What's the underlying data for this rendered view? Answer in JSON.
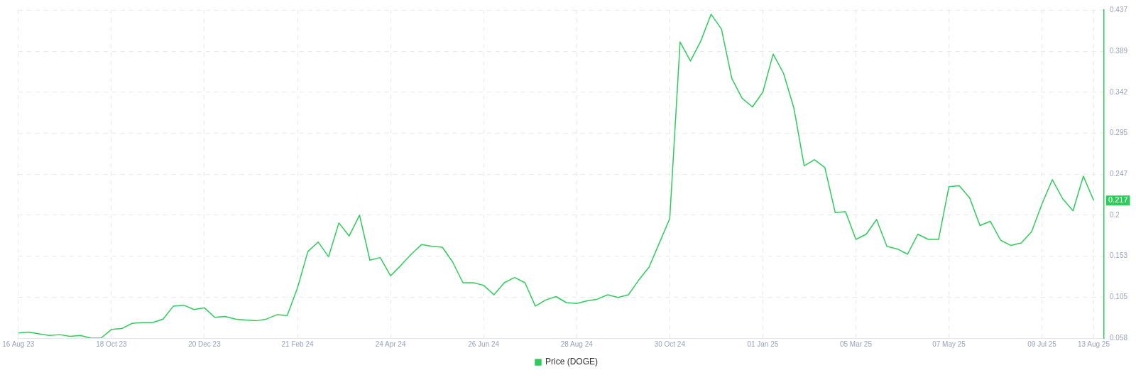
{
  "chart_data": {
    "type": "line",
    "x": [
      "2023-08-16",
      "2023-08-23",
      "2023-08-30",
      "2023-09-06",
      "2023-09-13",
      "2023-09-20",
      "2023-09-27",
      "2023-10-04",
      "2023-10-11",
      "2023-10-18",
      "2023-10-25",
      "2023-11-01",
      "2023-11-08",
      "2023-11-15",
      "2023-11-22",
      "2023-11-29",
      "2023-12-06",
      "2023-12-13",
      "2023-12-20",
      "2023-12-27",
      "2024-01-03",
      "2024-01-10",
      "2024-01-17",
      "2024-01-24",
      "2024-01-31",
      "2024-02-07",
      "2024-02-14",
      "2024-02-21",
      "2024-02-28",
      "2024-03-06",
      "2024-03-13",
      "2024-03-20",
      "2024-03-27",
      "2024-04-03",
      "2024-04-10",
      "2024-04-17",
      "2024-04-24",
      "2024-05-01",
      "2024-05-08",
      "2024-05-15",
      "2024-05-22",
      "2024-05-29",
      "2024-06-05",
      "2024-06-12",
      "2024-06-19",
      "2024-06-26",
      "2024-07-03",
      "2024-07-10",
      "2024-07-17",
      "2024-07-24",
      "2024-07-31",
      "2024-08-07",
      "2024-08-14",
      "2024-08-21",
      "2024-08-28",
      "2024-09-04",
      "2024-09-11",
      "2024-09-18",
      "2024-09-25",
      "2024-10-02",
      "2024-10-09",
      "2024-10-16",
      "2024-10-23",
      "2024-10-30",
      "2024-11-06",
      "2024-11-13",
      "2024-11-20",
      "2024-11-27",
      "2024-12-04",
      "2024-12-11",
      "2024-12-18",
      "2024-12-25",
      "2025-01-01",
      "2025-01-08",
      "2025-01-15",
      "2025-01-22",
      "2025-01-29",
      "2025-02-05",
      "2025-02-12",
      "2025-02-19",
      "2025-02-26",
      "2025-03-05",
      "2025-03-12",
      "2025-03-19",
      "2025-03-26",
      "2025-04-02",
      "2025-04-09",
      "2025-04-16",
      "2025-04-23",
      "2025-04-30",
      "2025-05-07",
      "2025-05-14",
      "2025-05-21",
      "2025-05-28",
      "2025-06-04",
      "2025-06-11",
      "2025-06-18",
      "2025-06-25",
      "2025-07-02",
      "2025-07-09",
      "2025-07-16",
      "2025-07-23",
      "2025-07-30",
      "2025-08-06",
      "2025-08-13"
    ],
    "series": [
      {
        "name": "Price (DOGE)",
        "color": "#2ecc5a",
        "values": [
          0.064,
          0.065,
          0.063,
          0.061,
          0.062,
          0.06,
          0.061,
          0.058,
          0.058,
          0.068,
          0.069,
          0.075,
          0.076,
          0.076,
          0.08,
          0.095,
          0.096,
          0.091,
          0.093,
          0.082,
          0.083,
          0.08,
          0.079,
          0.078,
          0.08,
          0.085,
          0.084,
          0.116,
          0.158,
          0.169,
          0.152,
          0.191,
          0.176,
          0.2,
          0.148,
          0.151,
          0.13,
          0.142,
          0.155,
          0.166,
          0.164,
          0.163,
          0.146,
          0.122,
          0.122,
          0.119,
          0.108,
          0.122,
          0.128,
          0.122,
          0.095,
          0.102,
          0.106,
          0.099,
          0.098,
          0.101,
          0.103,
          0.108,
          0.105,
          0.108,
          0.125,
          0.14,
          0.168,
          0.196,
          0.4,
          0.378,
          0.401,
          0.432,
          0.415,
          0.358,
          0.335,
          0.325,
          0.342,
          0.386,
          0.364,
          0.324,
          0.257,
          0.264,
          0.255,
          0.203,
          0.204,
          0.172,
          0.178,
          0.195,
          0.164,
          0.161,
          0.155,
          0.178,
          0.172,
          0.172,
          0.233,
          0.234,
          0.22,
          0.188,
          0.193,
          0.171,
          0.165,
          0.168,
          0.181,
          0.213,
          0.241,
          0.219,
          0.205,
          0.245,
          0.217
        ]
      }
    ],
    "xlim": [
      "2023-08-16",
      "2025-08-20"
    ],
    "xticks": [
      {
        "value": "2023-08-16",
        "label": "16 Aug 23"
      },
      {
        "value": "2023-10-18",
        "label": "18 Oct 23"
      },
      {
        "value": "2023-12-20",
        "label": "20 Dec 23"
      },
      {
        "value": "2024-02-21",
        "label": "21 Feb 24"
      },
      {
        "value": "2024-04-24",
        "label": "24 Apr 24"
      },
      {
        "value": "2024-06-26",
        "label": "26 Jun 24"
      },
      {
        "value": "2024-08-28",
        "label": "28 Aug 24"
      },
      {
        "value": "2024-10-30",
        "label": "30 Oct 24"
      },
      {
        "value": "2025-01-01",
        "label": "01 Jan 25"
      },
      {
        "value": "2025-03-05",
        "label": "05 Mar 25"
      },
      {
        "value": "2025-05-07",
        "label": "07 May 25"
      },
      {
        "value": "2025-07-09",
        "label": "09 Jul 25"
      },
      {
        "value": "2025-08-13",
        "label": "13 Aug 25"
      }
    ],
    "ylim": [
      0.058,
      0.437
    ],
    "yticks": [
      0.058,
      0.105,
      0.153,
      0.2,
      0.247,
      0.295,
      0.342,
      0.389,
      0.437
    ],
    "annotations": [
      {
        "text": "0.217",
        "x": "2025-08-13",
        "y": 0.217
      }
    ],
    "grid": true,
    "legend": "bottom",
    "marker": "none",
    "line_style": "solid"
  }
}
